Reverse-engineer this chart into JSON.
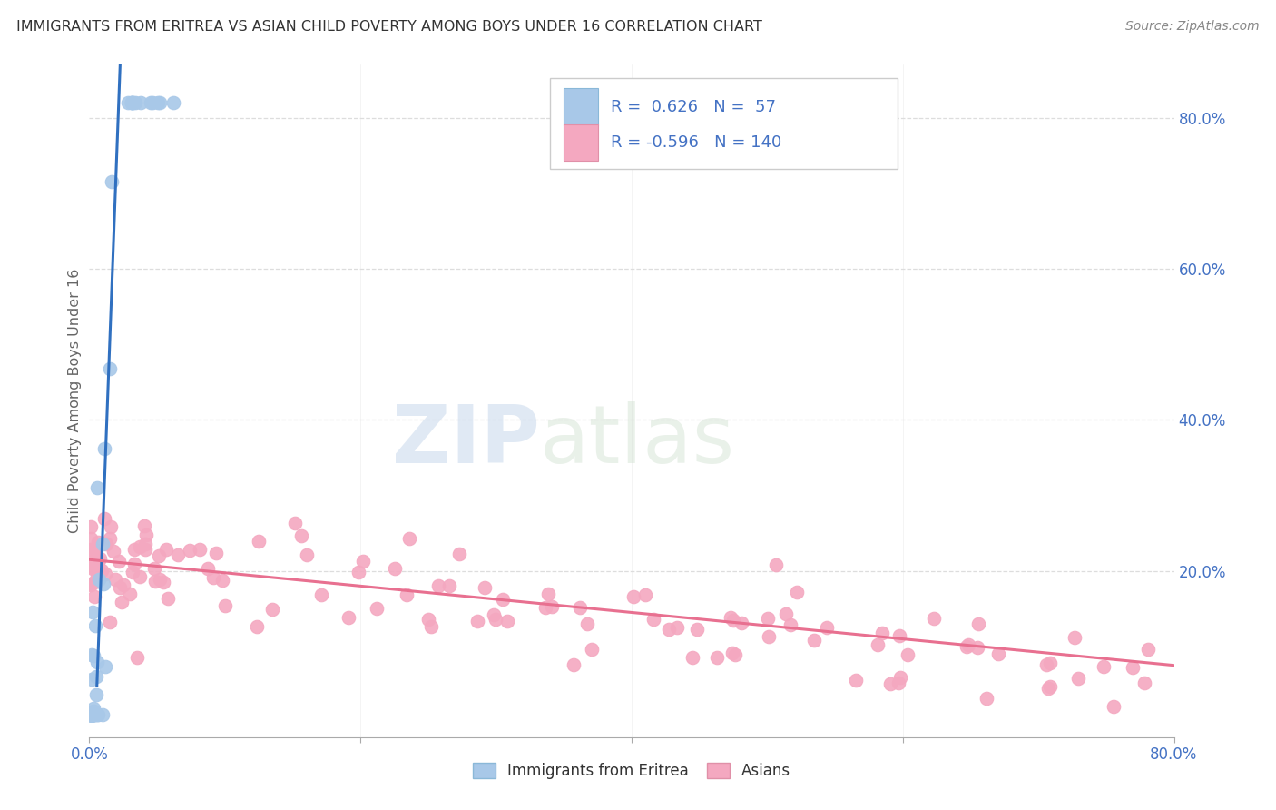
{
  "title": "IMMIGRANTS FROM ERITREA VS ASIAN CHILD POVERTY AMONG BOYS UNDER 16 CORRELATION CHART",
  "source": "Source: ZipAtlas.com",
  "ylabel": "Child Poverty Among Boys Under 16",
  "right_yticks": [
    "80.0%",
    "60.0%",
    "40.0%",
    "20.0%"
  ],
  "right_ytick_vals": [
    0.8,
    0.6,
    0.4,
    0.2
  ],
  "xlim": [
    0.0,
    0.8
  ],
  "ylim": [
    -0.02,
    0.87
  ],
  "blue_R": 0.626,
  "blue_N": 57,
  "pink_R": -0.596,
  "pink_N": 140,
  "blue_color": "#a8c8e8",
  "pink_color": "#f4a8c0",
  "blue_line_color": "#3070c0",
  "pink_line_color": "#e87090",
  "watermark_zip": "ZIP",
  "watermark_atlas": "atlas",
  "title_color": "#333333",
  "axis_label_color": "#4472c4",
  "legend_text_color": "#4472c4",
  "grid_color": "#dddddd",
  "blue_line_slope": 48.0,
  "blue_line_intercept": -0.22,
  "pink_line_y0": 0.215,
  "pink_line_y1": 0.075
}
